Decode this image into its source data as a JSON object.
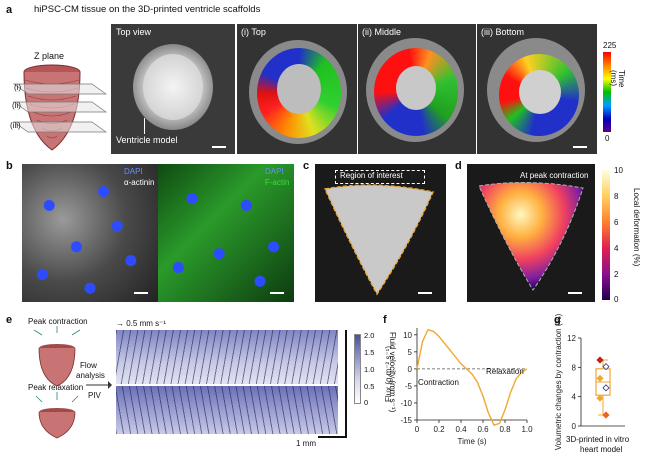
{
  "figure": {
    "a": {
      "letter": "a",
      "caption": "hiPSC-CM tissue on the 3D-printed ventricle scaffolds",
      "zplane": "Z plane",
      "planes": [
        "(i)",
        "(ii)",
        "(iii)"
      ],
      "topview": "Top view",
      "ventricle_model": "Ventricle model",
      "views": [
        "(i) Top",
        "(ii) Middle",
        "(iii) Bottom"
      ],
      "colorbar": {
        "label": "Time (ms)",
        "min": "0",
        "max": "225"
      }
    },
    "b": {
      "letter": "b",
      "left_labels": [
        "DAPI",
        "α-actinin"
      ],
      "right_labels": [
        "DAPI",
        "F-actin"
      ]
    },
    "c": {
      "letter": "c",
      "roi": "Region of interest"
    },
    "d": {
      "letter": "d",
      "title": "At peak contraction",
      "colorbar": {
        "label": "Local deformation (%)",
        "ticks": [
          "0",
          "2",
          "4",
          "6",
          "8",
          "10"
        ]
      }
    },
    "e": {
      "letter": "e",
      "peak_contraction": "Peak contraction",
      "peak_relaxation": "Peak relaxation",
      "flow_analysis": [
        "Flow",
        "analysis"
      ],
      "piv": "PIV",
      "scale_vector": "→ 0.5 mm s⁻¹",
      "scale_bar": "1 mm",
      "colorbar": {
        "label": "Fluid velocity (mm s⁻¹)",
        "ticks": [
          "0",
          "0.5",
          "1.0",
          "1.5",
          "2.0"
        ]
      }
    },
    "f": {
      "letter": "f",
      "contraction": "Contraction",
      "relaxation": "Relaxation"
    },
    "g": {
      "letter": "g",
      "caption": [
        "3D-printed in vitro",
        "heart model"
      ]
    }
  },
  "chart_data": [
    {
      "type": "line",
      "panel": "f",
      "xlabel": "Time (s)",
      "ylabel": "Flux (g m⁻² s⁻¹)",
      "xlim": [
        0,
        1.0
      ],
      "ylim": [
        -15,
        12
      ],
      "xticks": [
        "0",
        "0.2",
        "0.4",
        "0.6",
        "0.8",
        "1.0"
      ],
      "yticks": [
        "-15",
        "-10",
        "-5",
        "0",
        "5",
        "10"
      ],
      "x": [
        0,
        0.05,
        0.1,
        0.15,
        0.2,
        0.25,
        0.3,
        0.35,
        0.4,
        0.45,
        0.5,
        0.55,
        0.6,
        0.65,
        0.7,
        0.75,
        0.8,
        0.85,
        0.9,
        0.95,
        1.0
      ],
      "y": [
        0,
        8,
        11.5,
        11,
        9.5,
        7.5,
        5.5,
        3.5,
        1.5,
        0,
        -1.5,
        -4,
        -8,
        -13,
        -16.5,
        -16,
        -12,
        -7,
        -3,
        -1,
        0
      ],
      "series_color": "#f0a830"
    },
    {
      "type": "box",
      "panel": "g",
      "ylabel": "Volumetric changes by contraction (%)",
      "ylim": [
        0,
        12
      ],
      "yticks": [
        "0",
        "4",
        "8",
        "12"
      ],
      "box": {
        "q1": 4.2,
        "median": 6.0,
        "q3": 7.8,
        "whisker_low": 1.5,
        "whisker_high": 9.0
      },
      "points": [
        9.0,
        8.1,
        6.5,
        5.2,
        3.8,
        1.5
      ],
      "box_color": "#f0a830"
    }
  ]
}
